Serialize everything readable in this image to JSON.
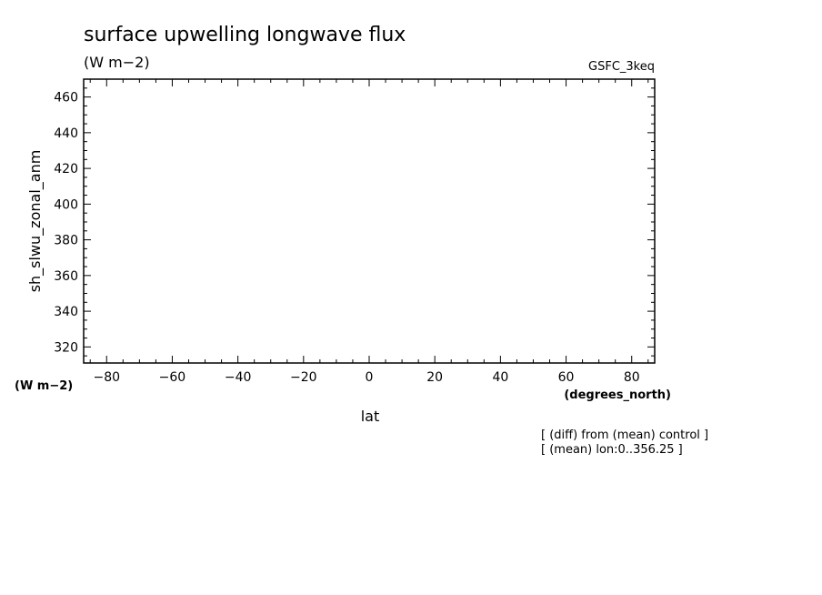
{
  "chart_data": {
    "type": "line",
    "title": "surface upwelling longwave flux",
    "subtitle": "(W m−2)",
    "dataset_label": "GSFC_3keq",
    "ylabel": "sh_slwu_zonal_anm",
    "yunits": "(W m−2)",
    "xlabel": "lat",
    "xunits": "(degrees_north)",
    "xlim": [
      -87,
      87
    ],
    "ylim": [
      311,
      470
    ],
    "xticks": [
      -80,
      -60,
      -40,
      -20,
      0,
      20,
      40,
      60,
      80
    ],
    "yticks": [
      320,
      340,
      360,
      380,
      400,
      420,
      440,
      460
    ],
    "xtick_labels": [
      "−80",
      "−60",
      "−40",
      "−20",
      "0",
      "20",
      "40",
      "60",
      "80"
    ],
    "ytick_labels": [
      "320",
      "340",
      "360",
      "380",
      "400",
      "420",
      "440",
      "460"
    ],
    "series": [],
    "notes": [
      "[ (diff) from (mean) control ]",
      "[ (mean) lon:0..356.25 ]"
    ]
  }
}
